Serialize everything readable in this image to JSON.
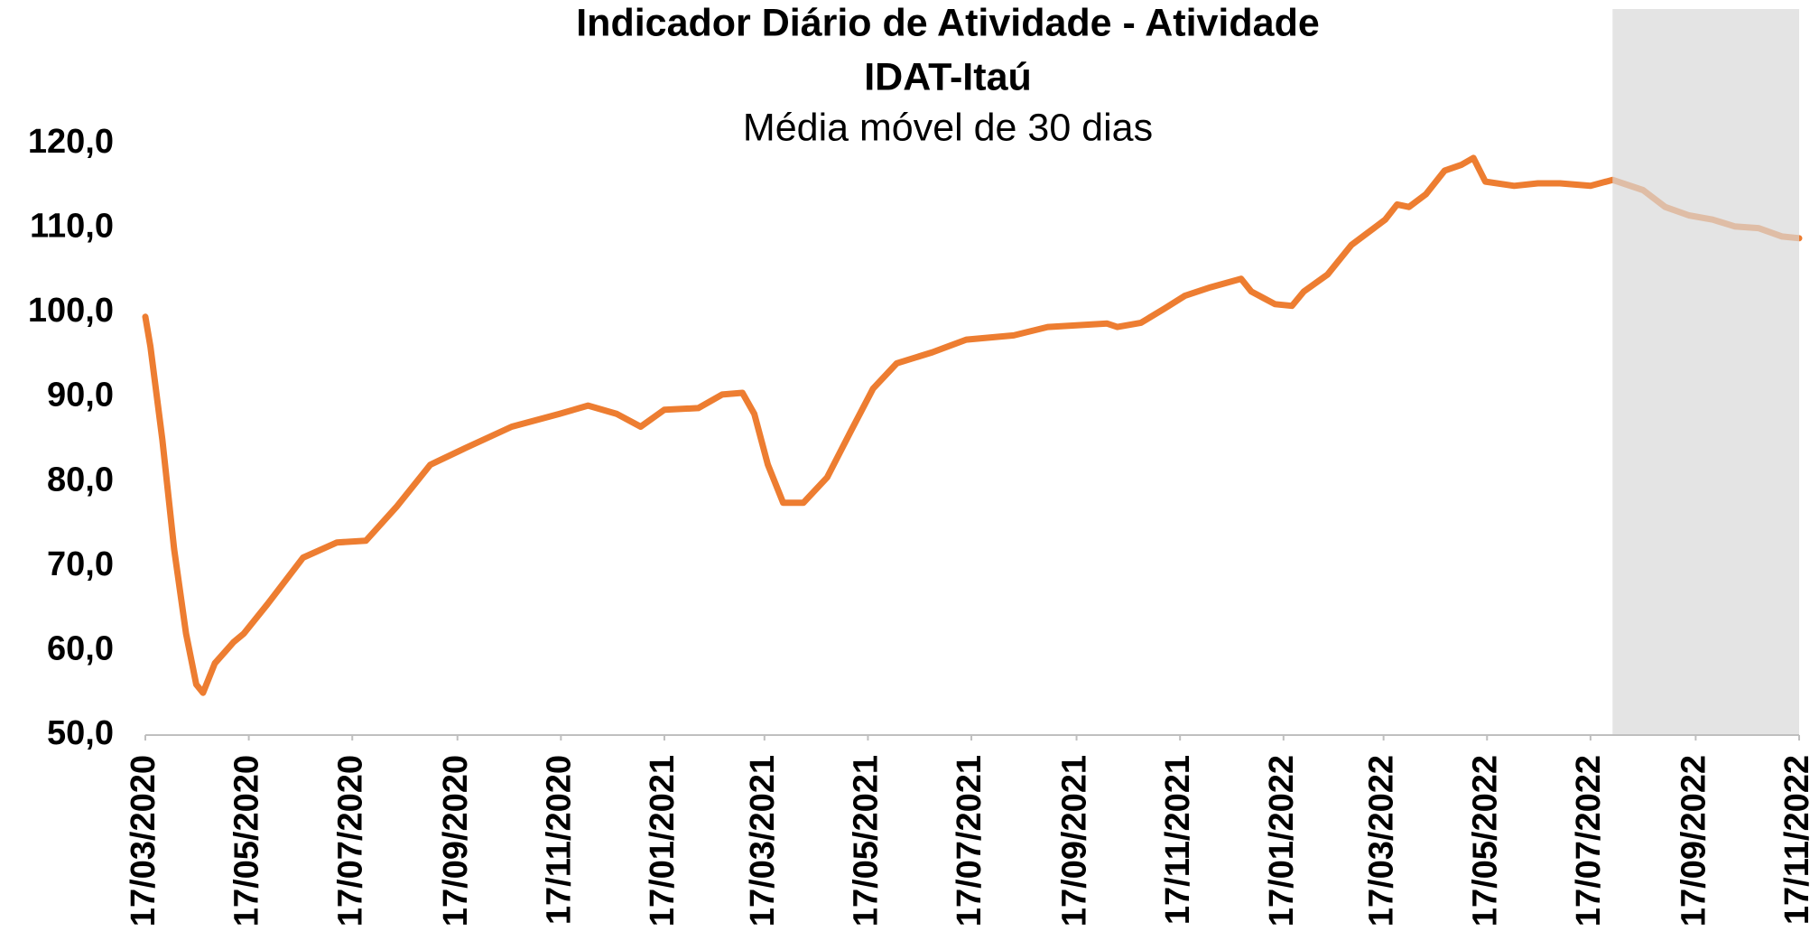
{
  "chart_data": {
    "type": "line",
    "title": [
      "Indicador Diário de Atividade - Atividade",
      "IDAT-Itaú"
    ],
    "subtitle": "Média móvel de 30 dias",
    "x": [
      "17/03/2020",
      "20/03/2020",
      "27/03/2020",
      "03/04/2020",
      "10/04/2020",
      "16/04/2020",
      "20/04/2020",
      "27/04/2020",
      "08/05/2020",
      "14/05/2020",
      "28/05/2020",
      "18/06/2020",
      "08/07/2020",
      "25/07/2020",
      "12/08/2020",
      "01/09/2020",
      "22/09/2020",
      "19/10/2020",
      "16/11/2020",
      "03/12/2020",
      "20/12/2020",
      "03/01/2021",
      "17/01/2021",
      "06/02/2021",
      "20/02/2021",
      "04/03/2021",
      "11/03/2021",
      "19/03/2021",
      "28/03/2021",
      "09/04/2021",
      "23/04/2021",
      "07/05/2021",
      "20/05/2021",
      "03/06/2021",
      "24/06/2021",
      "14/07/2021",
      "11/08/2021",
      "31/08/2021",
      "05/10/2021",
      "11/10/2021",
      "25/10/2021",
      "08/11/2021",
      "20/11/2021",
      "05/12/2021",
      "23/12/2021",
      "29/12/2021",
      "12/01/2022",
      "22/01/2022",
      "29/01/2022",
      "12/02/2022",
      "26/02/2022",
      "18/03/2022",
      "25/03/2022",
      "01/04/2022",
      "11/04/2022",
      "22/04/2022",
      "02/05/2022",
      "09/05/2022",
      "16/05/2022",
      "02/06/2022",
      "16/06/2022",
      "29/06/2022",
      "17/07/2022",
      "30/07/2022",
      "17/08/2022",
      "30/08/2022",
      "13/09/2022",
      "27/09/2022",
      "10/10/2022",
      "24/10/2022",
      "07/11/2022",
      "17/11/2022"
    ],
    "series": [
      {
        "name": "IDAT-Itaú",
        "color": "#ed7d31",
        "values": [
          99.5,
          96,
          85,
          72,
          62,
          56,
          55,
          58.5,
          61,
          62,
          65.5,
          71,
          72.8,
          73,
          77,
          82,
          84,
          86.5,
          88,
          89,
          88,
          86.5,
          88.5,
          88.7,
          90.3,
          90.5,
          88,
          82,
          77.5,
          77.5,
          80.5,
          86,
          91,
          94,
          95.3,
          96.8,
          97.3,
          98.3,
          98.7,
          98.3,
          98.8,
          100.5,
          102,
          103,
          104,
          102.5,
          101,
          100.8,
          102.5,
          104.5,
          108,
          111,
          112.8,
          112.5,
          114,
          116.8,
          117.5,
          118.3,
          115.5,
          115,
          115.3,
          115.3,
          115,
          115.7,
          114.5,
          112.5,
          111.5,
          111,
          110.2,
          110,
          109,
          108.8
        ]
      }
    ],
    "xlim": [
      "17/03/2020",
      "17/11/2022"
    ],
    "xticks": [
      "17/03/2020",
      "17/05/2020",
      "17/07/2020",
      "17/09/2020",
      "17/11/2020",
      "17/01/2021",
      "17/03/2021",
      "17/05/2021",
      "17/07/2021",
      "17/09/2021",
      "17/11/2021",
      "17/01/2022",
      "17/03/2022",
      "17/05/2022",
      "17/07/2022",
      "17/09/2022",
      "17/11/2022"
    ],
    "ylim": [
      50,
      120
    ],
    "yticks": [
      {
        "value": 50,
        "label": "50,0"
      },
      {
        "value": 60,
        "label": "60,0"
      },
      {
        "value": 70,
        "label": "70,0"
      },
      {
        "value": 80,
        "label": "80,0"
      },
      {
        "value": 90,
        "label": "90,0"
      },
      {
        "value": 100,
        "label": "100,0"
      },
      {
        "value": 110,
        "label": "110,0"
      },
      {
        "value": 120,
        "label": "120,0"
      }
    ],
    "shaded_region": [
      "30/07/2022",
      "17/11/2022"
    ],
    "grid": false
  }
}
